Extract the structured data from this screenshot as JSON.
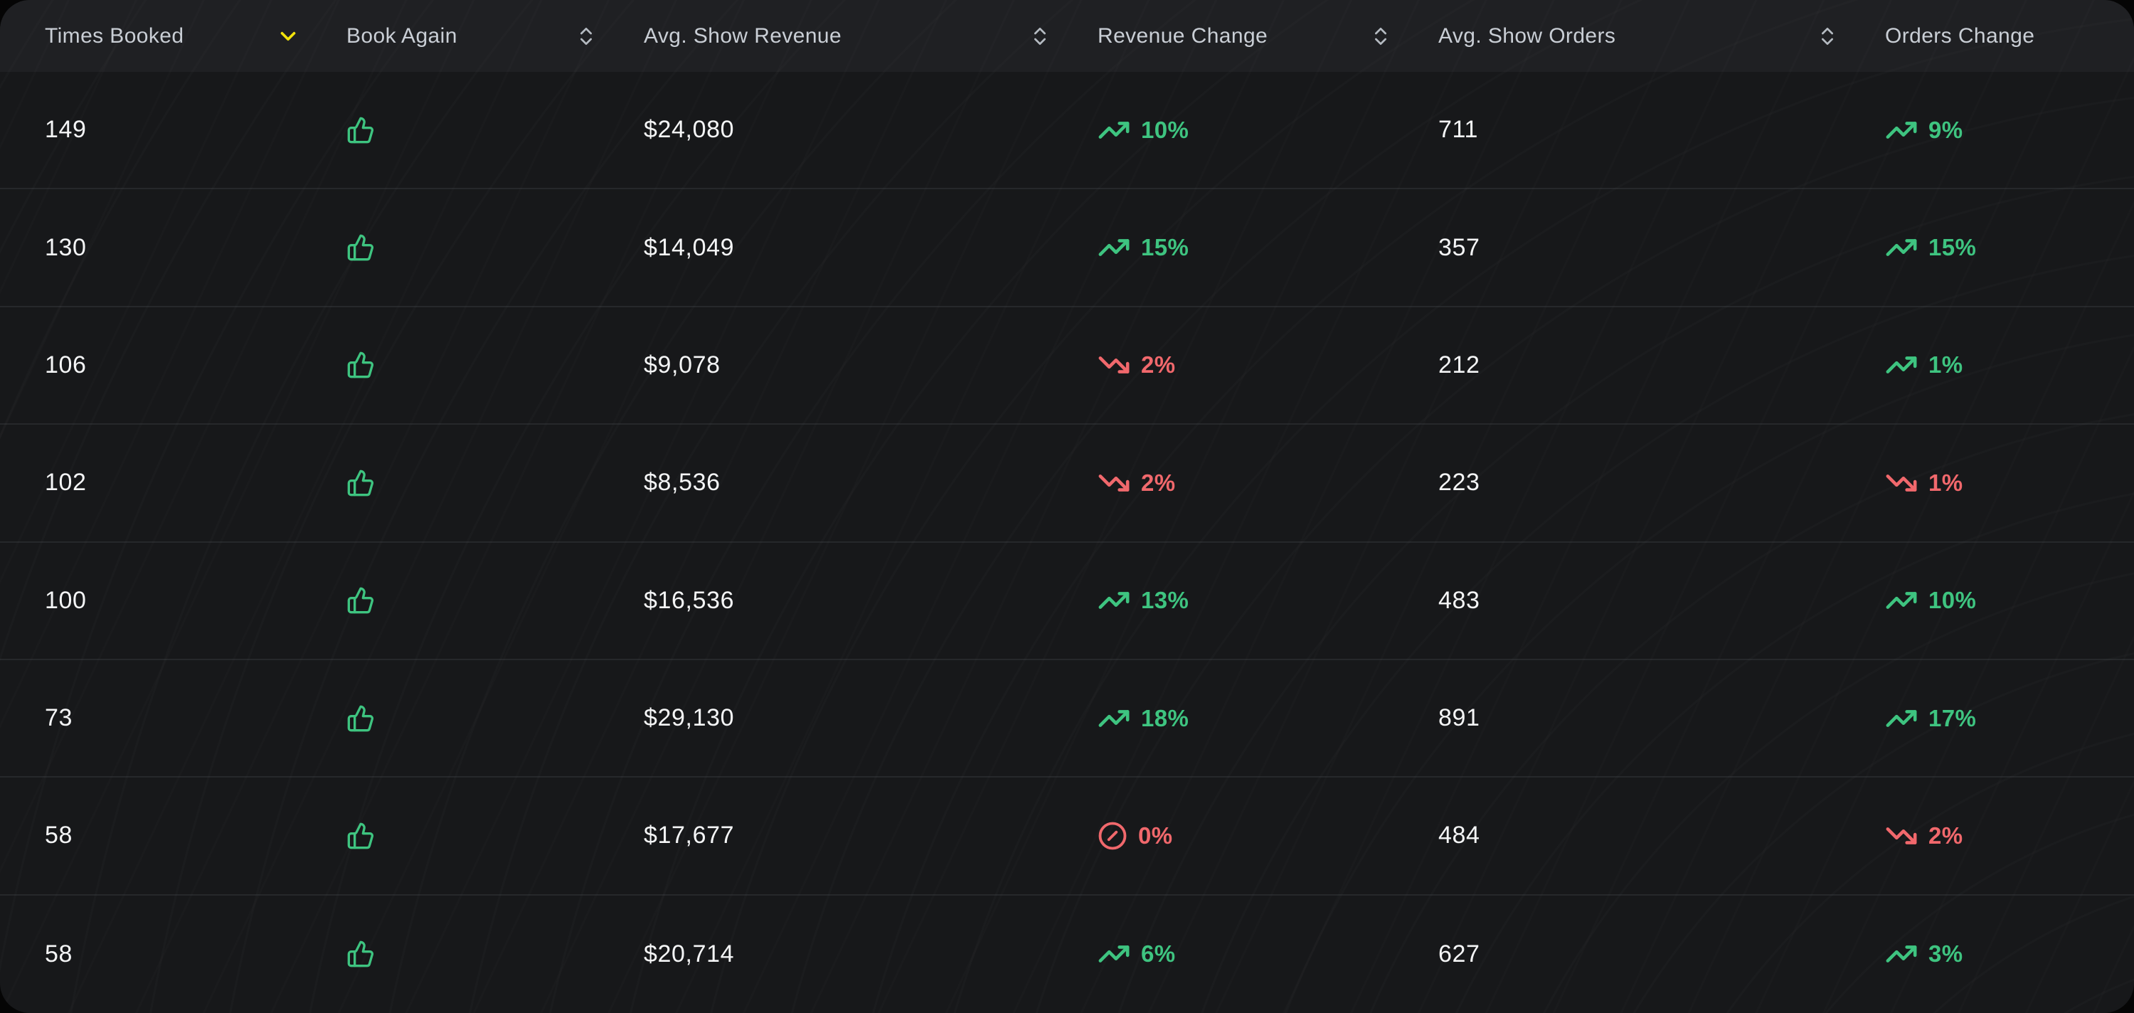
{
  "accent_colors": {
    "positive_green": "#3ec480",
    "negative_red": "#f1686c",
    "active_sort_yellow": "#f2e30b"
  },
  "table": {
    "columns": [
      {
        "label": "Times Booked",
        "sort_state": "sorted-desc"
      },
      {
        "label": "Book Again",
        "sort_state": "sortable"
      },
      {
        "label": "Avg. Show Revenue",
        "sort_state": "sortable"
      },
      {
        "label": "Revenue Change",
        "sort_state": "sortable"
      },
      {
        "label": "Avg. Show Orders",
        "sort_state": "sortable"
      },
      {
        "label": "Orders Change",
        "sort_state": "none"
      }
    ],
    "rows": [
      {
        "times_booked": "149",
        "book_again": "thumbs-up",
        "avg_show_revenue": "$24,080",
        "revenue_change": {
          "value": "10%",
          "direction": "up"
        },
        "avg_show_orders": "711",
        "orders_change": {
          "value": "9%",
          "direction": "up"
        }
      },
      {
        "times_booked": "130",
        "book_again": "thumbs-up",
        "avg_show_revenue": "$14,049",
        "revenue_change": {
          "value": "15%",
          "direction": "up"
        },
        "avg_show_orders": "357",
        "orders_change": {
          "value": "15%",
          "direction": "up"
        }
      },
      {
        "times_booked": "106",
        "book_again": "thumbs-up",
        "avg_show_revenue": "$9,078",
        "revenue_change": {
          "value": "2%",
          "direction": "down"
        },
        "avg_show_orders": "212",
        "orders_change": {
          "value": "1%",
          "direction": "up"
        }
      },
      {
        "times_booked": "102",
        "book_again": "thumbs-up",
        "avg_show_revenue": "$8,536",
        "revenue_change": {
          "value": "2%",
          "direction": "down"
        },
        "avg_show_orders": "223",
        "orders_change": {
          "value": "1%",
          "direction": "down"
        }
      },
      {
        "times_booked": "100",
        "book_again": "thumbs-up",
        "avg_show_revenue": "$16,536",
        "revenue_change": {
          "value": "13%",
          "direction": "up"
        },
        "avg_show_orders": "483",
        "orders_change": {
          "value": "10%",
          "direction": "up"
        }
      },
      {
        "times_booked": "73",
        "book_again": "thumbs-up",
        "avg_show_revenue": "$29,130",
        "revenue_change": {
          "value": "18%",
          "direction": "up"
        },
        "avg_show_orders": "891",
        "orders_change": {
          "value": "17%",
          "direction": "up"
        }
      },
      {
        "times_booked": "58",
        "book_again": "thumbs-up",
        "avg_show_revenue": "$17,677",
        "revenue_change": {
          "value": "0%",
          "direction": "flat"
        },
        "avg_show_orders": "484",
        "orders_change": {
          "value": "2%",
          "direction": "down"
        }
      },
      {
        "times_booked": "58",
        "book_again": "thumbs-up",
        "avg_show_revenue": "$20,714",
        "revenue_change": {
          "value": "6%",
          "direction": "up"
        },
        "avg_show_orders": "627",
        "orders_change": {
          "value": "3%",
          "direction": "up"
        }
      }
    ]
  }
}
